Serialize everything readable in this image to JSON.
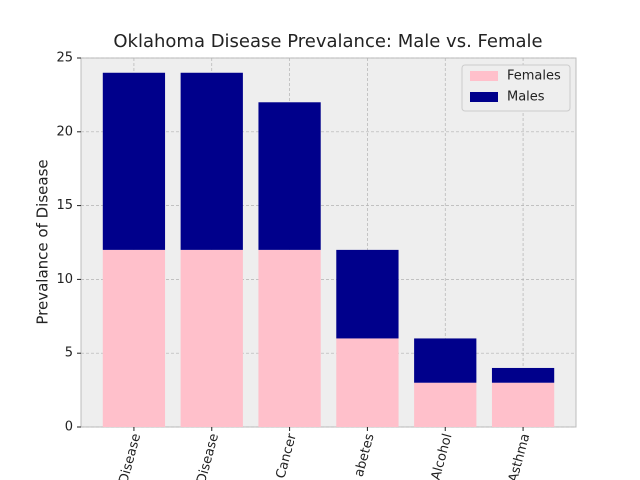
{
  "chart_data": {
    "type": "stacked_bar",
    "title": "Oklahoma Disease Prevalance: Male vs. Female",
    "y_label": "Prevalance of Disease",
    "categories": [
      "Disease",
      "Disease",
      "Cancer",
      "abetes",
      "Alcohol",
      "Asthma"
    ],
    "series": [
      {
        "name": "Females",
        "color": "#ffc0cb",
        "values": [
          12,
          12,
          12,
          6,
          3,
          3
        ]
      },
      {
        "name": "Males",
        "color": "#00008b",
        "values": [
          12,
          12,
          10,
          6,
          3,
          1
        ]
      }
    ],
    "ylim": [
      0,
      25
    ],
    "yticks": [
      0,
      5,
      10,
      15,
      20,
      25
    ],
    "grid": true,
    "legend": "upper right"
  }
}
